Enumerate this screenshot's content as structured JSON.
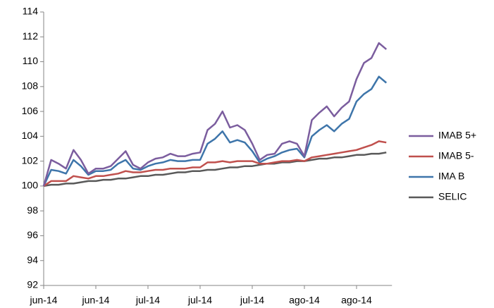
{
  "chart_data": {
    "type": "line",
    "categories": [
      "jun-14",
      null,
      null,
      null,
      null,
      null,
      null,
      "jun-14",
      null,
      null,
      null,
      null,
      null,
      null,
      "jul-14",
      null,
      null,
      null,
      null,
      null,
      null,
      "jul-14",
      null,
      null,
      null,
      null,
      null,
      null,
      "jul-14",
      null,
      null,
      null,
      null,
      null,
      null,
      "ago-14",
      null,
      null,
      null,
      null,
      null,
      null,
      "ago-14",
      null,
      null,
      null,
      null
    ],
    "series": [
      {
        "name": "IMAB 5+",
        "color": "#7b5d9e",
        "values": [
          100,
          102.1,
          101.8,
          101.4,
          102.9,
          102.1,
          101.0,
          101.4,
          101.4,
          101.6,
          102.2,
          102.8,
          101.7,
          101.4,
          101.9,
          102.2,
          102.3,
          102.6,
          102.4,
          102.4,
          102.6,
          102.7,
          104.5,
          105.0,
          106.0,
          104.7,
          104.9,
          104.5,
          103.4,
          102.1,
          102.5,
          102.6,
          103.4,
          103.6,
          103.4,
          102.4,
          105.3,
          105.9,
          106.4,
          105.6,
          106.3,
          106.8,
          108.6,
          109.9,
          110.3,
          111.5,
          111.0
        ]
      },
      {
        "name": "IMAB 5-",
        "color": "#c0504d",
        "values": [
          100,
          100.4,
          100.4,
          100.4,
          100.8,
          100.7,
          100.6,
          100.8,
          100.8,
          100.9,
          101.0,
          101.2,
          101.1,
          101.1,
          101.2,
          101.3,
          101.3,
          101.4,
          101.4,
          101.4,
          101.5,
          101.5,
          101.9,
          101.9,
          102.0,
          101.9,
          102.0,
          102.0,
          102.0,
          101.8,
          101.8,
          101.9,
          102.0,
          102.0,
          102.1,
          102.0,
          102.3,
          102.4,
          102.5,
          102.6,
          102.7,
          102.8,
          102.9,
          103.1,
          103.3,
          103.6,
          103.5
        ]
      },
      {
        "name": "IMA B",
        "color": "#3e75aa",
        "values": [
          100,
          101.3,
          101.2,
          101.0,
          102.1,
          101.6,
          100.9,
          101.2,
          101.2,
          101.3,
          101.8,
          102.1,
          101.4,
          101.3,
          101.6,
          101.8,
          101.9,
          102.1,
          102.0,
          102.0,
          102.1,
          102.1,
          103.4,
          103.8,
          104.4,
          103.5,
          103.7,
          103.5,
          102.8,
          101.9,
          102.2,
          102.4,
          102.7,
          102.9,
          103.0,
          102.3,
          104.0,
          104.5,
          104.9,
          104.4,
          105.0,
          105.4,
          106.8,
          107.4,
          107.8,
          108.8,
          108.3
        ]
      },
      {
        "name": "SELIC",
        "color": "#595959",
        "values": [
          100.0,
          100.1,
          100.1,
          100.2,
          100.2,
          100.3,
          100.4,
          100.4,
          100.5,
          100.5,
          100.6,
          100.6,
          100.7,
          100.8,
          100.8,
          100.9,
          100.9,
          101.0,
          101.1,
          101.1,
          101.2,
          101.2,
          101.3,
          101.3,
          101.4,
          101.5,
          101.5,
          101.6,
          101.6,
          101.7,
          101.8,
          101.8,
          101.9,
          101.9,
          102.0,
          102.0,
          102.1,
          102.2,
          102.2,
          102.3,
          102.3,
          102.4,
          102.5,
          102.5,
          102.6,
          102.6,
          102.7
        ]
      }
    ],
    "ylim": [
      92,
      114
    ],
    "yticks": [
      92,
      94,
      96,
      98,
      100,
      102,
      104,
      106,
      108,
      110,
      112,
      114
    ],
    "grid": false,
    "legend": "right"
  }
}
